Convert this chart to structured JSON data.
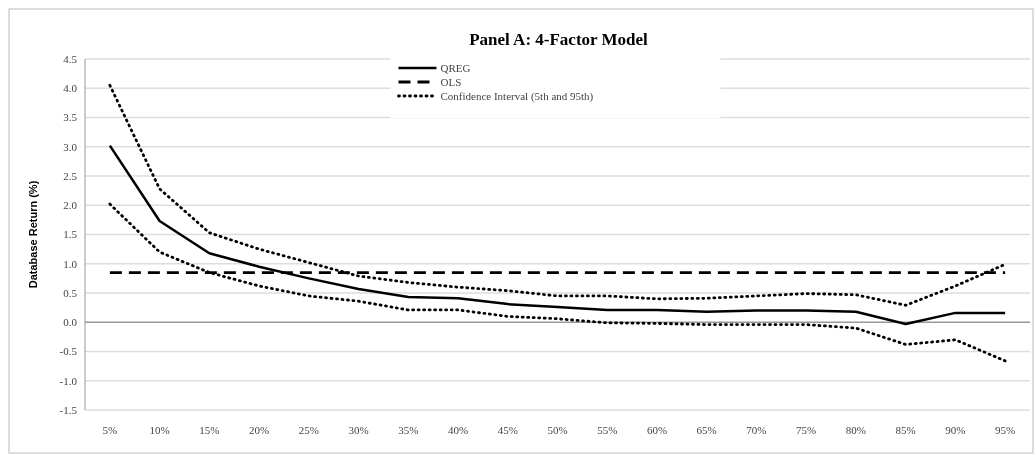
{
  "chart_data": {
    "type": "line",
    "title": "Panel A: 4-Factor Model",
    "ylabel": "Database Return (%)",
    "categories": [
      "5%",
      "10%",
      "15%",
      "20%",
      "25%",
      "30%",
      "35%",
      "40%",
      "45%",
      "50%",
      "55%",
      "60%",
      "65%",
      "70%",
      "75%",
      "80%",
      "85%",
      "90%",
      "95%"
    ],
    "series": [
      {
        "name": "QREG",
        "color": "#000000",
        "line_style": "solid",
        "values": [
          3.02,
          1.73,
          1.18,
          0.95,
          0.75,
          0.57,
          0.43,
          0.41,
          0.31,
          0.26,
          0.21,
          0.21,
          0.18,
          0.2,
          0.2,
          0.18,
          -0.03,
          0.16,
          0.16
        ]
      },
      {
        "name": "OLS",
        "color": "#000000",
        "line_style": "dashed",
        "values": [
          0.85,
          0.85,
          0.85,
          0.85,
          0.85,
          0.85,
          0.85,
          0.85,
          0.85,
          0.85,
          0.85,
          0.85,
          0.85,
          0.85,
          0.85,
          0.85,
          0.85,
          0.85,
          0.85
        ]
      },
      {
        "name": "Confidence Interval (5th and 95th)",
        "color": "#000000",
        "line_style": "dotted",
        "values": [
          4.05,
          2.28,
          1.53,
          1.25,
          1.02,
          0.79,
          0.68,
          0.6,
          0.54,
          0.45,
          0.45,
          0.4,
          0.41,
          0.45,
          0.49,
          0.47,
          0.29,
          0.62,
          0.99
        ]
      },
      {
        "color": "#000000",
        "line_style": "dotted",
        "values": [
          2.02,
          1.2,
          0.85,
          0.62,
          0.45,
          0.36,
          0.21,
          0.21,
          0.1,
          0.06,
          -0.01,
          -0.02,
          -0.04,
          -0.04,
          -0.04,
          -0.1,
          -0.38,
          -0.3,
          -0.66
        ]
      }
    ],
    "ylim": [
      -1.5,
      4.5
    ],
    "yticks": [
      {
        "value": -1.5,
        "label": "-1.5"
      },
      {
        "value": -1,
        "label": "-1.0"
      },
      {
        "value": -0.5,
        "label": "-0.5"
      },
      {
        "value": 0,
        "label": "0.0"
      },
      {
        "value": 0.5,
        "label": "0.5"
      },
      {
        "value": 1,
        "label": "1.0"
      },
      {
        "value": 1.5,
        "label": "1.5"
      },
      {
        "value": 2,
        "label": "2.0"
      },
      {
        "value": 2.5,
        "label": "2.5"
      },
      {
        "value": 3,
        "label": "3.0"
      },
      {
        "value": 3.5,
        "label": "3.5"
      },
      {
        "value": 4,
        "label": "4.0"
      },
      {
        "value": 4.5,
        "label": "4.5"
      }
    ],
    "grid": "y",
    "legend": "top"
  }
}
